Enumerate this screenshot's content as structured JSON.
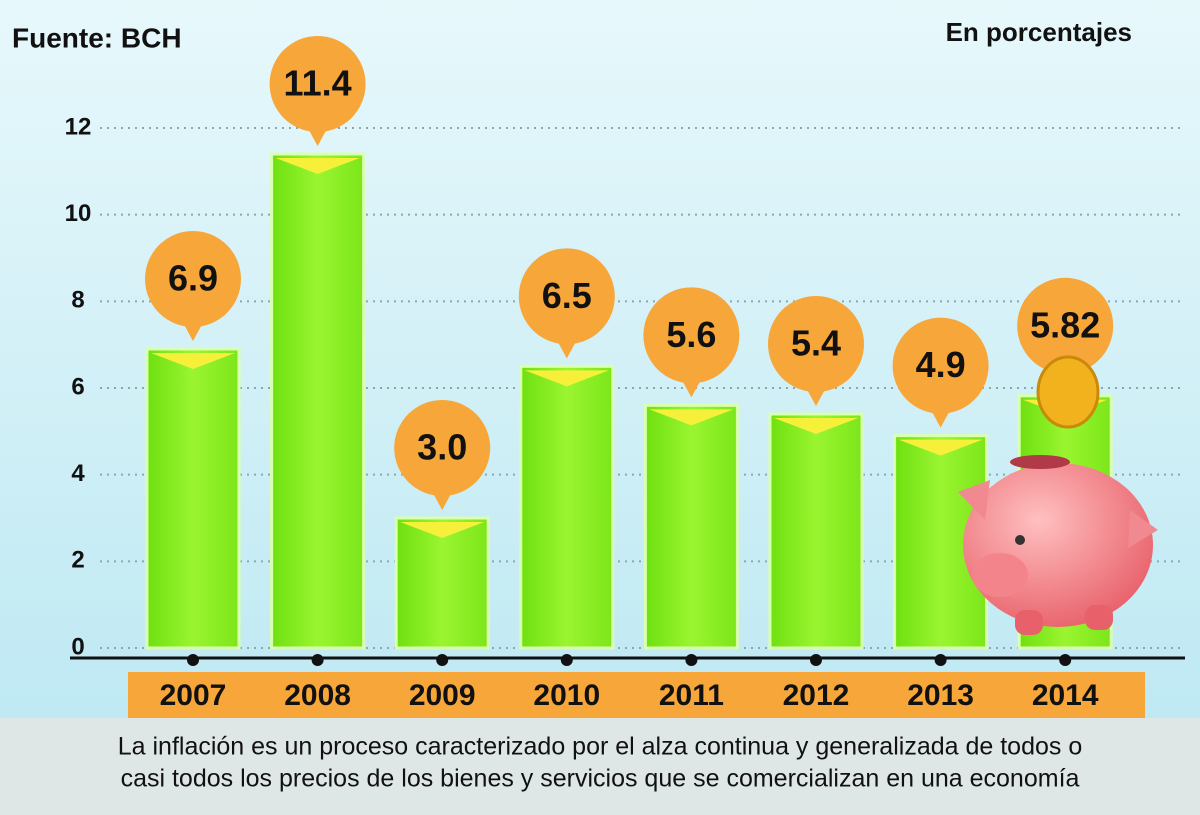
{
  "chart_data": {
    "type": "bar",
    "source": "Fuente: BCH",
    "unit_note": "En porcentajes",
    "categories": [
      "2007",
      "2008",
      "2009",
      "2010",
      "2011",
      "2012",
      "2013",
      "2014"
    ],
    "values": [
      6.9,
      11.4,
      3.0,
      6.5,
      5.6,
      5.4,
      4.9,
      5.82
    ],
    "value_labels": [
      "6.9",
      "11.4",
      "3.0",
      "6.5",
      "5.6",
      "5.4",
      "4.9",
      "5.82"
    ],
    "color": "#8ef21c",
    "ylim": [
      0,
      12
    ],
    "yticks": [
      0,
      2,
      4,
      6,
      8,
      10,
      12
    ],
    "grid": true,
    "footnote": [
      "La inflación es un proceso caracterizado por el alza continua y generalizada de todos o",
      "casi todos los precios de los bienes y servicios que se comercializan en una economía"
    ]
  }
}
